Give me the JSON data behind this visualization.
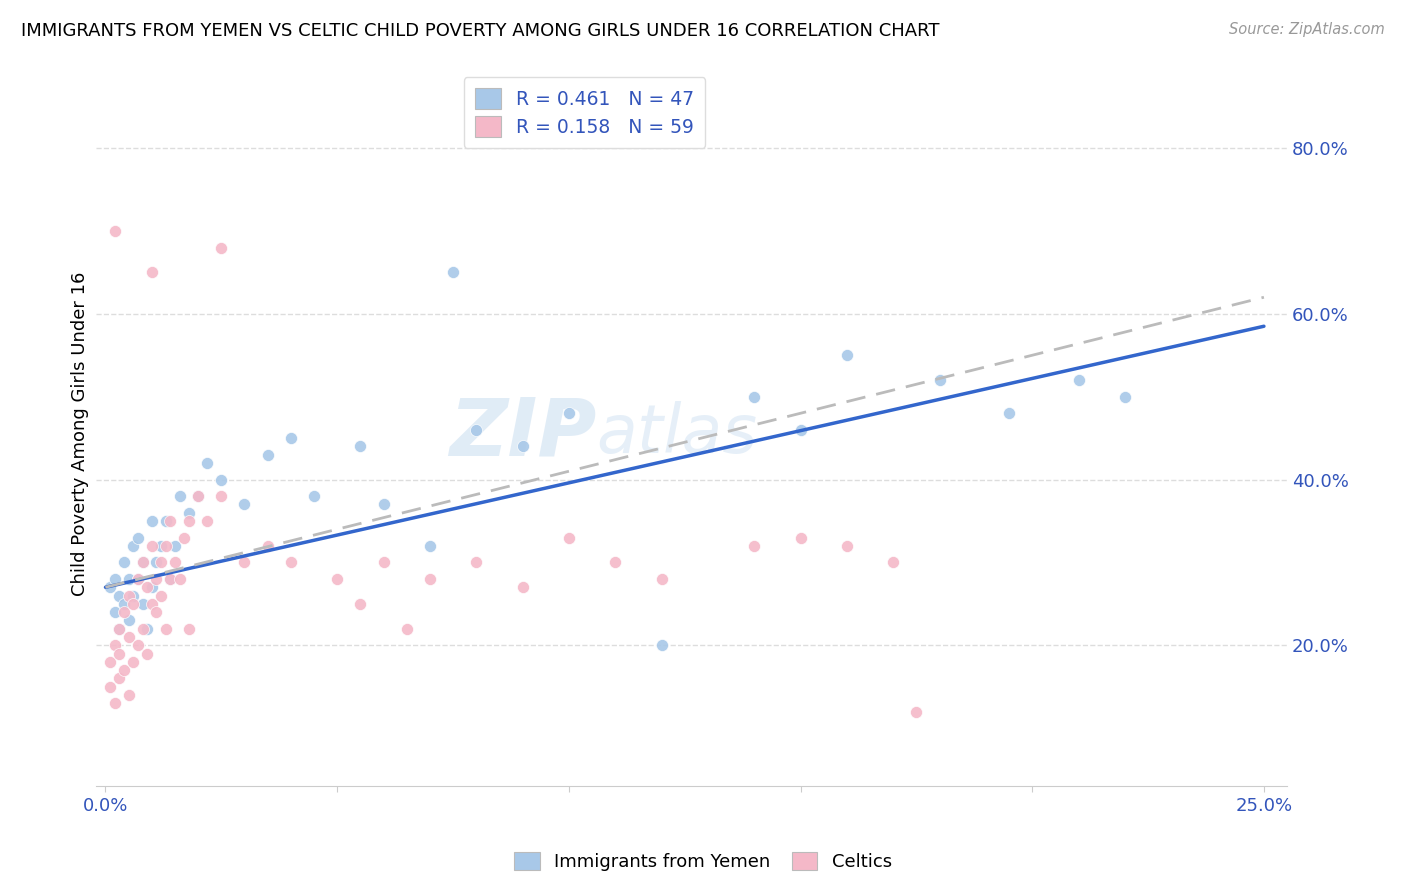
{
  "title": "IMMIGRANTS FROM YEMEN VS CELTIC CHILD POVERTY AMONG GIRLS UNDER 16 CORRELATION CHART",
  "source": "Source: ZipAtlas.com",
  "ylabel": "Child Poverty Among Girls Under 16",
  "ytick_values": [
    0.2,
    0.4,
    0.6,
    0.8
  ],
  "ytick_labels": [
    "20.0%",
    "40.0%",
    "60.0%",
    "80.0%"
  ],
  "xlim": [
    -0.002,
    0.255
  ],
  "ylim": [
    0.03,
    0.88
  ],
  "watermark": "ZIPatlas",
  "legend_r1": "R = 0.461",
  "legend_n1": "N = 47",
  "legend_r2": "R = 0.158",
  "legend_n2": "N = 59",
  "color_blue": "#a8c8e8",
  "color_pink": "#f4b8c8",
  "legend_label1": "Immigrants from Yemen",
  "legend_label2": "Celtics",
  "blue_line_color": "#3366cc",
  "pink_line_color": "#bbbbbb",
  "blue_x": [
    0.001,
    0.002,
    0.002,
    0.003,
    0.003,
    0.004,
    0.004,
    0.005,
    0.005,
    0.006,
    0.006,
    0.007,
    0.007,
    0.008,
    0.008,
    0.009,
    0.01,
    0.01,
    0.011,
    0.012,
    0.013,
    0.014,
    0.015,
    0.016,
    0.018,
    0.02,
    0.022,
    0.025,
    0.03,
    0.035,
    0.04,
    0.045,
    0.055,
    0.06,
    0.07,
    0.08,
    0.09,
    0.1,
    0.12,
    0.14,
    0.15,
    0.16,
    0.18,
    0.195,
    0.21,
    0.22,
    0.075
  ],
  "blue_y": [
    0.27,
    0.24,
    0.28,
    0.26,
    0.22,
    0.25,
    0.3,
    0.23,
    0.28,
    0.32,
    0.26,
    0.28,
    0.33,
    0.3,
    0.25,
    0.22,
    0.27,
    0.35,
    0.3,
    0.32,
    0.35,
    0.28,
    0.32,
    0.38,
    0.36,
    0.38,
    0.42,
    0.4,
    0.37,
    0.43,
    0.45,
    0.38,
    0.44,
    0.37,
    0.32,
    0.46,
    0.44,
    0.48,
    0.2,
    0.5,
    0.46,
    0.55,
    0.52,
    0.48,
    0.52,
    0.5,
    0.65
  ],
  "pink_x": [
    0.001,
    0.001,
    0.002,
    0.002,
    0.003,
    0.003,
    0.003,
    0.004,
    0.004,
    0.005,
    0.005,
    0.005,
    0.006,
    0.006,
    0.007,
    0.007,
    0.008,
    0.008,
    0.009,
    0.009,
    0.01,
    0.01,
    0.011,
    0.011,
    0.012,
    0.012,
    0.013,
    0.013,
    0.014,
    0.014,
    0.015,
    0.016,
    0.017,
    0.018,
    0.018,
    0.02,
    0.022,
    0.025,
    0.03,
    0.035,
    0.04,
    0.05,
    0.055,
    0.06,
    0.065,
    0.07,
    0.08,
    0.09,
    0.1,
    0.11,
    0.12,
    0.14,
    0.15,
    0.16,
    0.17,
    0.175,
    0.002,
    0.01,
    0.025
  ],
  "pink_y": [
    0.15,
    0.18,
    0.13,
    0.2,
    0.16,
    0.19,
    0.22,
    0.17,
    0.24,
    0.14,
    0.21,
    0.26,
    0.18,
    0.25,
    0.2,
    0.28,
    0.22,
    0.3,
    0.19,
    0.27,
    0.25,
    0.32,
    0.24,
    0.28,
    0.26,
    0.3,
    0.32,
    0.22,
    0.28,
    0.35,
    0.3,
    0.28,
    0.33,
    0.35,
    0.22,
    0.38,
    0.35,
    0.38,
    0.3,
    0.32,
    0.3,
    0.28,
    0.25,
    0.3,
    0.22,
    0.28,
    0.3,
    0.27,
    0.33,
    0.3,
    0.28,
    0.32,
    0.33,
    0.32,
    0.3,
    0.12,
    0.7,
    0.65,
    0.68
  ],
  "blue_line_x0": 0.0,
  "blue_line_x1": 0.25,
  "blue_line_y0": 0.27,
  "blue_line_y1": 0.585,
  "pink_line_x0": 0.0,
  "pink_line_x1": 0.25,
  "pink_line_y0": 0.27,
  "pink_line_y1": 0.62
}
